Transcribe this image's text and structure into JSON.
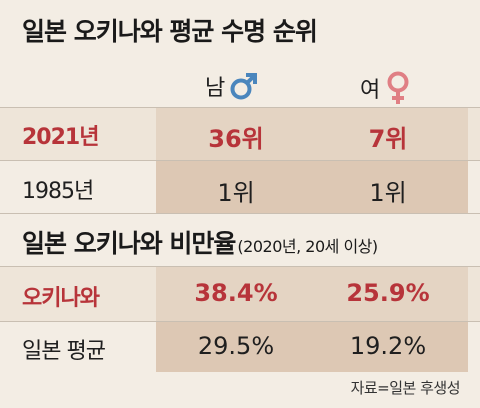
{
  "title_lifespan": "일본 오키나와 평균 수명 순위",
  "columns": {
    "male": "남",
    "female": "여"
  },
  "lifespan_rows": [
    {
      "label": "2021년",
      "male": "36위",
      "female": "7위",
      "highlight": true
    },
    {
      "label": "1985년",
      "male": "1위",
      "female": "1위",
      "highlight": false
    }
  ],
  "title_obesity": "일본 오키나와 비만율",
  "obesity_subtitle": "(2020년, 20세 이상)",
  "obesity_rows": [
    {
      "label": "오키나와",
      "male": "38.4%",
      "female": "25.9%",
      "highlight": true
    },
    {
      "label": "일본 평균",
      "male": "29.5%",
      "female": "19.2%",
      "highlight": false
    }
  ],
  "source": "자료=일본 후생성",
  "colors": {
    "highlight_text": "#b7343a",
    "male_symbol": "#4a86bd",
    "female_symbol": "#e07f84",
    "column_bg": "#ddc8b4",
    "row_band": "#e9ded0"
  },
  "icons": {
    "male": "male-symbol-icon",
    "female": "female-symbol-icon"
  }
}
